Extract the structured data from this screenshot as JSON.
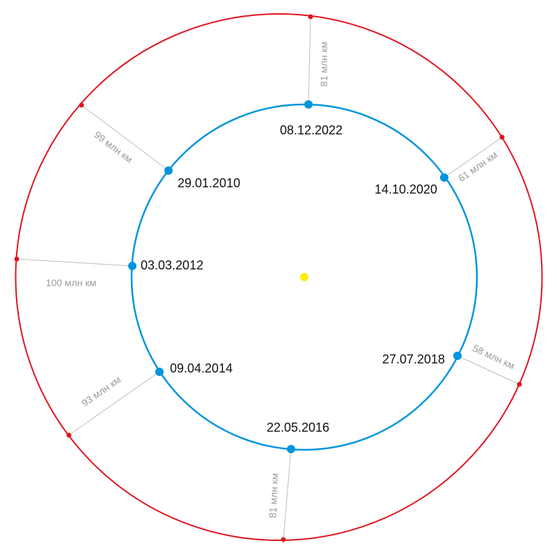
{
  "colors": {
    "sun": "#ffee00",
    "earth_orbit": "#0095dd",
    "mars_orbit": "#e0141e",
    "connector": "#bdbdbd"
  },
  "oppositions": [
    {
      "date": "08.12.2022",
      "distance": "81 млн км"
    },
    {
      "date": "14.10.2020",
      "distance": "61 млн км"
    },
    {
      "date": "27.07.2018",
      "distance": "58 млн км"
    },
    {
      "date": "22.05.2016",
      "distance": "81 млн км"
    },
    {
      "date": "09.04.2014",
      "distance": "93 млн км"
    },
    {
      "date": "03.03.2012",
      "distance": "100 млн км"
    },
    {
      "date": "29.01.2010",
      "distance": "99 млн км"
    }
  ]
}
